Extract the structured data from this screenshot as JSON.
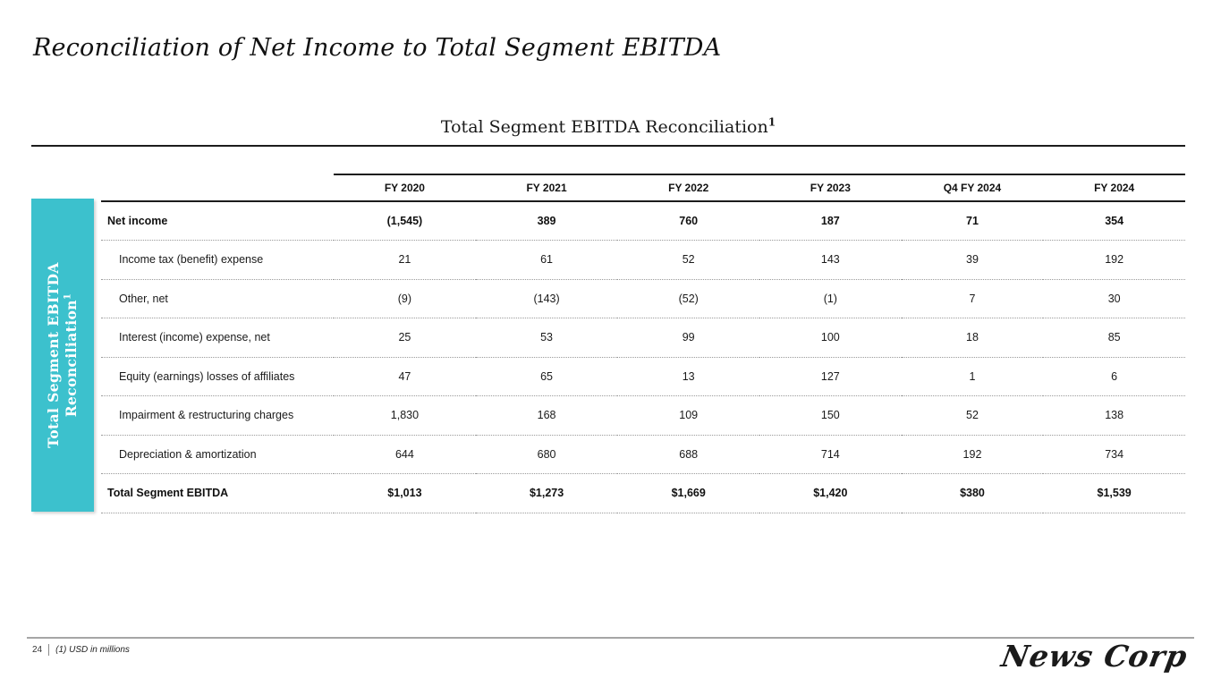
{
  "slide": {
    "title": "Reconciliation of Net Income to Total Segment EBITDA",
    "caption": "Total Segment EBITDA Reconciliation",
    "caption_superscript": "1"
  },
  "sidebar": {
    "label_line1": "Total Segment EBITDA",
    "label_line2": "Reconciliation",
    "superscript": "1",
    "color": "#3CC1CD"
  },
  "table": {
    "columns": [
      "FY 2020",
      "FY 2021",
      "FY 2022",
      "FY 2023",
      "Q4 FY 2024",
      "FY 2024"
    ],
    "rows": [
      {
        "label": "Net income",
        "bold": true,
        "values": [
          "(1,545)",
          "389",
          "760",
          "187",
          "71",
          "354"
        ]
      },
      {
        "label": "Income tax (benefit) expense",
        "bold": false,
        "values": [
          "21",
          "61",
          "52",
          "143",
          "39",
          "192"
        ]
      },
      {
        "label": "Other, net",
        "bold": false,
        "values": [
          "(9)",
          "(143)",
          "(52)",
          "(1)",
          "7",
          "30"
        ]
      },
      {
        "label": "Interest (income) expense, net",
        "bold": false,
        "values": [
          "25",
          "53",
          "99",
          "100",
          "18",
          "85"
        ]
      },
      {
        "label": "Equity (earnings) losses of affiliates",
        "bold": false,
        "values": [
          "47",
          "65",
          "13",
          "127",
          "1",
          "6"
        ]
      },
      {
        "label": "Impairment & restructuring charges",
        "bold": false,
        "values": [
          "1,830",
          "168",
          "109",
          "150",
          "52",
          "138"
        ]
      },
      {
        "label": "Depreciation & amortization",
        "bold": false,
        "values": [
          "644",
          "680",
          "688",
          "714",
          "192",
          "734"
        ]
      },
      {
        "label": "Total Segment EBITDA",
        "bold": true,
        "values": [
          "$1,013",
          "$1,273",
          "$1,669",
          "$1,420",
          "$380",
          "$1,539"
        ]
      }
    ]
  },
  "footer": {
    "page_number": "24",
    "footnote": "(1) USD in millions",
    "logo_text": "News Corp"
  }
}
